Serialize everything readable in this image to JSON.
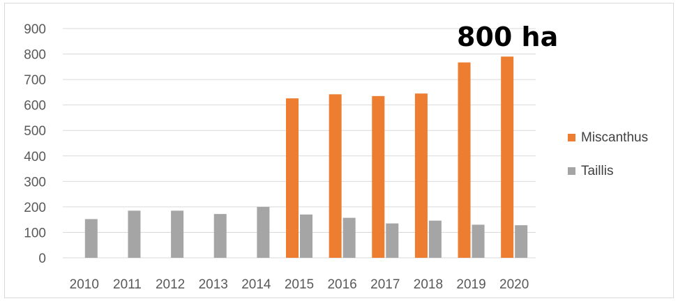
{
  "chart_data": {
    "type": "bar",
    "categories": [
      "2010",
      "2011",
      "2012",
      "2013",
      "2014",
      "2015",
      "2016",
      "2017",
      "2018",
      "2019",
      "2020"
    ],
    "series": [
      {
        "name": "Miscanthus",
        "color": "#ed7d31",
        "values": [
          0,
          0,
          0,
          0,
          0,
          626,
          642,
          635,
          645,
          767,
          790
        ]
      },
      {
        "name": "Taillis",
        "color": "#a5a5a5",
        "values": [
          152,
          185,
          185,
          172,
          200,
          170,
          157,
          135,
          146,
          130,
          128
        ]
      }
    ],
    "ylim": [
      0,
      900
    ],
    "yticks": [
      0,
      100,
      200,
      300,
      400,
      500,
      600,
      700,
      800,
      900
    ],
    "grid": true,
    "legend": "right",
    "annotation": "800 ha"
  }
}
